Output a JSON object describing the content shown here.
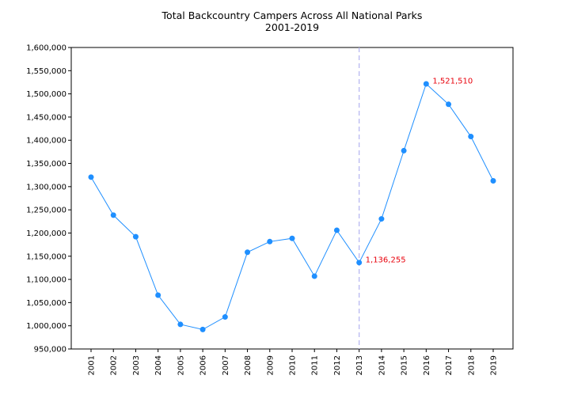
{
  "chart_data": {
    "type": "line",
    "title": "Total Backcountry Campers Across All National Parks",
    "subtitle": "2001-2019",
    "xlabel": "",
    "ylabel": "",
    "categories": [
      "2001",
      "2002",
      "2003",
      "2004",
      "2005",
      "2006",
      "2007",
      "2008",
      "2009",
      "2010",
      "2011",
      "2012",
      "2013",
      "2014",
      "2015",
      "2016",
      "2017",
      "2018",
      "2019"
    ],
    "series": [
      {
        "values": [
          1320500,
          1238500,
          1192000,
          1066000,
          1003000,
          992000,
          1019000,
          1158500,
          1181500,
          1188500,
          1107000,
          1206000,
          1136255,
          1230500,
          1377500,
          1521510,
          1477500,
          1408000,
          1312500
        ]
      }
    ],
    "ylim": [
      950000,
      1600000
    ],
    "yticks": [
      "950,000",
      "1,000,000",
      "1,050,000",
      "1,100,000",
      "1,150,000",
      "1,200,000",
      "1,250,000",
      "1,300,000",
      "1,350,000",
      "1,400,000",
      "1,450,000",
      "1,500,000",
      "1,550,000",
      "1,600,000"
    ],
    "ytick_values": [
      950000,
      1000000,
      1050000,
      1100000,
      1150000,
      1200000,
      1250000,
      1300000,
      1350000,
      1400000,
      1450000,
      1500000,
      1550000,
      1600000
    ],
    "reference_line": {
      "x": "2013",
      "style": "dashed"
    },
    "annotations": [
      {
        "x": "2013",
        "text": "1,136,255"
      },
      {
        "x": "2016",
        "text": "1,521,510"
      }
    ],
    "grid": false,
    "colors": {
      "line": "#1f8fff",
      "marker": "#1f8fff",
      "annotation": "#e8000b",
      "reference_line": "#b3b3f0"
    }
  }
}
